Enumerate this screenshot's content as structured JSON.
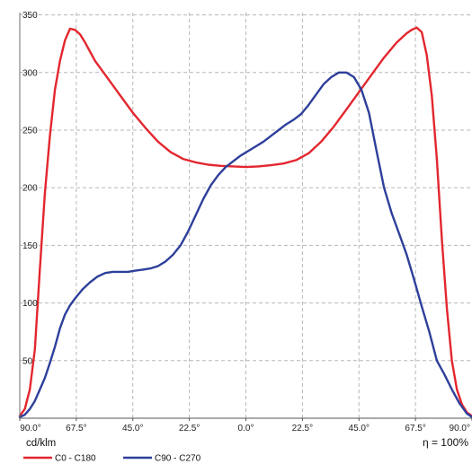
{
  "chart_data": {
    "type": "line",
    "unit_label": "cd/klm",
    "efficiency_label": "η = 100%",
    "x_ticks": [
      "90.0°",
      "67.5°",
      "45.0°",
      "22.5°",
      "0.0°",
      "22.5°",
      "45.0°",
      "67.5°",
      "90.0°"
    ],
    "x_range": [
      -90,
      90
    ],
    "y_ticks": [
      50,
      100,
      150,
      200,
      250,
      300,
      350
    ],
    "y_range": [
      0,
      352
    ],
    "grid": true,
    "legend_position": "bottom-left",
    "series": [
      {
        "name": "C0 - C180",
        "color": "#e3262e",
        "points": [
          [
            -90,
            2
          ],
          [
            -88,
            8
          ],
          [
            -86,
            25
          ],
          [
            -84,
            60
          ],
          [
            -82,
            130
          ],
          [
            -80,
            195
          ],
          [
            -78,
            245
          ],
          [
            -76,
            285
          ],
          [
            -74,
            310
          ],
          [
            -72,
            328
          ],
          [
            -70,
            338
          ],
          [
            -68,
            337
          ],
          [
            -66,
            333
          ],
          [
            -64,
            326
          ],
          [
            -62,
            318
          ],
          [
            -60,
            310
          ],
          [
            -55,
            295
          ],
          [
            -50,
            280
          ],
          [
            -45,
            265
          ],
          [
            -40,
            252
          ],
          [
            -35,
            240
          ],
          [
            -30,
            231
          ],
          [
            -25,
            225
          ],
          [
            -20,
            222
          ],
          [
            -15,
            220
          ],
          [
            -10,
            219
          ],
          [
            -5,
            218.5
          ],
          [
            0,
            218
          ],
          [
            5,
            218.5
          ],
          [
            10,
            219.5
          ],
          [
            15,
            221
          ],
          [
            20,
            224
          ],
          [
            25,
            230
          ],
          [
            30,
            240
          ],
          [
            35,
            253
          ],
          [
            40,
            268
          ],
          [
            45,
            283
          ],
          [
            50,
            298
          ],
          [
            55,
            313
          ],
          [
            60,
            326
          ],
          [
            64,
            334
          ],
          [
            66,
            337
          ],
          [
            68,
            339
          ],
          [
            70,
            335
          ],
          [
            72,
            315
          ],
          [
            74,
            280
          ],
          [
            76,
            225
          ],
          [
            78,
            155
          ],
          [
            80,
            95
          ],
          [
            82,
            50
          ],
          [
            84,
            25
          ],
          [
            86,
            12
          ],
          [
            88,
            5
          ],
          [
            90,
            2
          ]
        ]
      },
      {
        "name": "C90 - C270",
        "color": "#2e3f9a",
        "points": [
          [
            -90,
            1
          ],
          [
            -88,
            3
          ],
          [
            -86,
            8
          ],
          [
            -84,
            15
          ],
          [
            -82,
            25
          ],
          [
            -80,
            35
          ],
          [
            -78,
            48
          ],
          [
            -76,
            62
          ],
          [
            -74,
            78
          ],
          [
            -72,
            90
          ],
          [
            -70,
            98
          ],
          [
            -68,
            104
          ],
          [
            -65,
            112
          ],
          [
            -62,
            118
          ],
          [
            -59,
            123
          ],
          [
            -56,
            126
          ],
          [
            -53,
            127
          ],
          [
            -50,
            127
          ],
          [
            -47,
            127
          ],
          [
            -44,
            128
          ],
          [
            -41,
            129
          ],
          [
            -38,
            130
          ],
          [
            -35,
            132
          ],
          [
            -32,
            136
          ],
          [
            -29,
            142
          ],
          [
            -26,
            150
          ],
          [
            -23,
            162
          ],
          [
            -20,
            176
          ],
          [
            -17,
            190
          ],
          [
            -14,
            202
          ],
          [
            -11,
            211
          ],
          [
            -8,
            218
          ],
          [
            -5,
            223
          ],
          [
            -2,
            228
          ],
          [
            1,
            232
          ],
          [
            4,
            236
          ],
          [
            7,
            240
          ],
          [
            10,
            245
          ],
          [
            13,
            250
          ],
          [
            16,
            255
          ],
          [
            19,
            259
          ],
          [
            22,
            264
          ],
          [
            25,
            272
          ],
          [
            28,
            281
          ],
          [
            31,
            290
          ],
          [
            34,
            296
          ],
          [
            37,
            300
          ],
          [
            40,
            300
          ],
          [
            43,
            296
          ],
          [
            46,
            285
          ],
          [
            49,
            265
          ],
          [
            52,
            232
          ],
          [
            55,
            200
          ],
          [
            58,
            178
          ],
          [
            61,
            160
          ],
          [
            64,
            142
          ],
          [
            67,
            120
          ],
          [
            70,
            97
          ],
          [
            73,
            75
          ],
          [
            76,
            50
          ],
          [
            79,
            38
          ],
          [
            82,
            25
          ],
          [
            85,
            13
          ],
          [
            88,
            4
          ],
          [
            90,
            1
          ]
        ]
      }
    ]
  }
}
